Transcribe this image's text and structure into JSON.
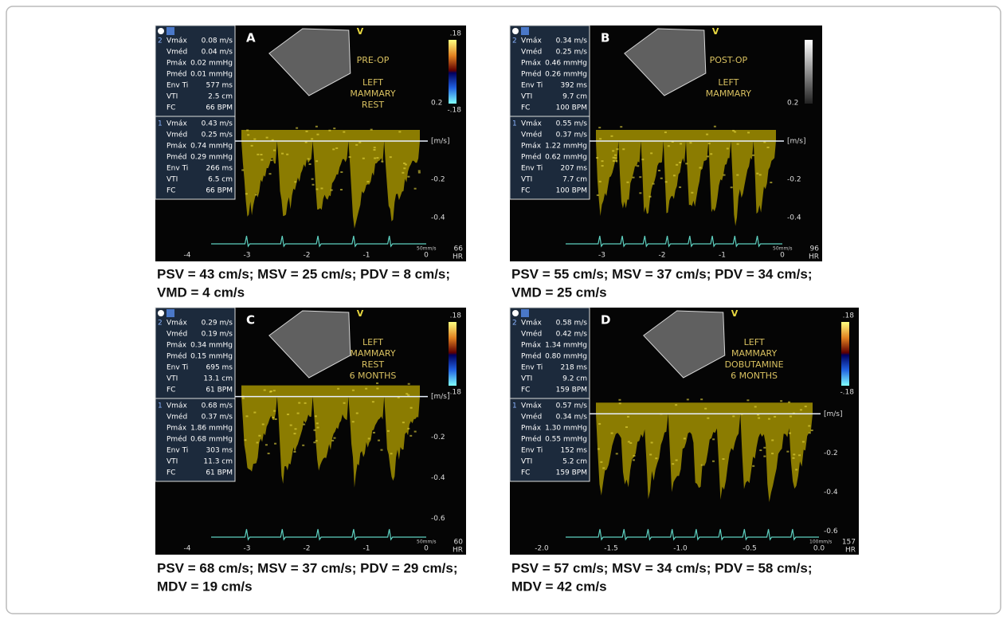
{
  "panels": [
    {
      "label": "A",
      "annotation": [
        "PRE-OP",
        "",
        "LEFT",
        "MAMMARY",
        "REST"
      ],
      "v": "V",
      "scale": [
        ".18",
        "-.18"
      ],
      "blocks": [
        {
          "index": "2",
          "rows": [
            [
              "Vmáx",
              "0.08 m/s"
            ],
            [
              "Vméd",
              "0.04 m/s"
            ],
            [
              "Pmáx",
              "0.02 mmHg"
            ],
            [
              "Pméd",
              "0.01 mmHg"
            ],
            [
              "Env Ti",
              "577 ms"
            ],
            [
              "VTI",
              "2.5 cm"
            ],
            [
              "FC",
              "66 BPM"
            ]
          ]
        },
        {
          "index": "1",
          "rows": [
            [
              "Vmáx",
              "0.43 m/s"
            ],
            [
              "Vméd",
              "0.25 m/s"
            ],
            [
              "Pmáx",
              "0.74 mmHg"
            ],
            [
              "Pméd",
              "0.29 mmHg"
            ],
            [
              "Env Ti",
              "266 ms"
            ],
            [
              "VTI",
              "6.5 cm"
            ],
            [
              "FC",
              "66 BPM"
            ]
          ]
        }
      ],
      "velocity_ticks": [
        "0.2",
        "[m/s]",
        "-0.2",
        "-0.4"
      ],
      "time_ticks": [
        "-4",
        "-3",
        "-2",
        "-1",
        "0"
      ],
      "sweep": "50mm/s",
      "hr": "66",
      "hr_unit": "HR",
      "caption": [
        "PSV = 43 cm/s; MSV = 25 cm/s; PDV = 8 cm/s;",
        "VMD = 4 cm/s"
      ]
    },
    {
      "label": "B",
      "annotation": [
        "POST-OP",
        "",
        "LEFT",
        "MAMMARY"
      ],
      "v": "V",
      "scale": [],
      "blocks": [
        {
          "index": "2",
          "rows": [
            [
              "Vmáx",
              "0.34 m/s"
            ],
            [
              "Vméd",
              "0.25 m/s"
            ],
            [
              "Pmáx",
              "0.46 mmHg"
            ],
            [
              "Pméd",
              "0.26 mmHg"
            ],
            [
              "Env Ti",
              "392 ms"
            ],
            [
              "VTI",
              "9.7 cm"
            ],
            [
              "FC",
              "100 BPM"
            ]
          ]
        },
        {
          "index": "1",
          "rows": [
            [
              "Vmáx",
              "0.55 m/s"
            ],
            [
              "Vméd",
              "0.37 m/s"
            ],
            [
              "Pmáx",
              "1.22 mmHg"
            ],
            [
              "Pméd",
              "0.62 mmHg"
            ],
            [
              "Env Ti",
              "207 ms"
            ],
            [
              "VTI",
              "7.7 cm"
            ],
            [
              "FC",
              "100 BPM"
            ]
          ]
        }
      ],
      "velocity_ticks": [
        "0.2",
        "[m/s]",
        "-0.2",
        "-0.4"
      ],
      "time_ticks": [
        "-3",
        "-2",
        "-1",
        "0"
      ],
      "sweep": "50mm/s",
      "hr": "96",
      "hr_unit": "HR",
      "caption": [
        "PSV = 55 cm/s; MSV = 37 cm/s; PDV = 34 cm/s;",
        "VMD = 25 cm/s"
      ]
    },
    {
      "label": "C",
      "annotation": [
        "LEFT",
        "MAMMARY",
        "REST",
        "6 MONTHS"
      ],
      "v": "V",
      "scale": [
        ".18",
        "-.18"
      ],
      "blocks": [
        {
          "index": "2",
          "rows": [
            [
              "Vmáx",
              "0.29 m/s"
            ],
            [
              "Vméd",
              "0.19 m/s"
            ],
            [
              "Pmáx",
              "0.34 mmHg"
            ],
            [
              "Pméd",
              "0.15 mmHg"
            ],
            [
              "Env Ti",
              "695 ms"
            ],
            [
              "VTI",
              "13.1 cm"
            ],
            [
              "FC",
              "61 BPM"
            ]
          ]
        },
        {
          "index": "1",
          "rows": [
            [
              "Vmáx",
              "0.68 m/s"
            ],
            [
              "Vméd",
              "0.37 m/s"
            ],
            [
              "Pmáx",
              "1.86 mmHg"
            ],
            [
              "Pméd",
              "0.68 mmHg"
            ],
            [
              "Env Ti",
              "303 ms"
            ],
            [
              "VTI",
              "11.3 cm"
            ],
            [
              "FC",
              "61 BPM"
            ]
          ]
        }
      ],
      "velocity_ticks": [
        "[m/s]",
        "-0.2",
        "-0.4",
        "-0.6"
      ],
      "time_ticks": [
        "-4",
        "-3",
        "-2",
        "-1",
        "0"
      ],
      "sweep": "50mm/s",
      "hr": "60",
      "hr_unit": "HR",
      "caption": [
        "PSV = 68 cm/s; MSV = 37 cm/s; PDV = 29 cm/s;",
        "MDV = 19 cm/s"
      ]
    },
    {
      "label": "D",
      "annotation": [
        "LEFT",
        "MAMMARY",
        "DOBUTAMINE",
        "6 MONTHS"
      ],
      "v": "V",
      "scale": [
        ".18",
        "-.18"
      ],
      "blocks": [
        {
          "index": "2",
          "rows": [
            [
              "Vmáx",
              "0.58 m/s"
            ],
            [
              "Vméd",
              "0.42 m/s"
            ],
            [
              "Pmáx",
              "1.34 mmHg"
            ],
            [
              "Pméd",
              "0.80 mmHg"
            ],
            [
              "Env Ti",
              "218 ms"
            ],
            [
              "VTI",
              "9.2 cm"
            ],
            [
              "FC",
              "159 BPM"
            ]
          ]
        },
        {
          "index": "1",
          "rows": [
            [
              "Vmáx",
              "0.57 m/s"
            ],
            [
              "Vméd",
              "0.34 m/s"
            ],
            [
              "Pmáx",
              "1.30 mmHg"
            ],
            [
              "Pméd",
              "0.55 mmHg"
            ],
            [
              "Env Ti",
              "152 ms"
            ],
            [
              "VTI",
              "5.2 cm"
            ],
            [
              "FC",
              "159 BPM"
            ]
          ]
        }
      ],
      "velocity_ticks": [
        "[m/s]",
        "-0.2",
        "-0.4",
        "-0.6"
      ],
      "time_ticks": [
        "-2.0",
        "-1.5",
        "-1.0",
        "-0.5",
        "0.0"
      ],
      "sweep": "100mm/s",
      "hr": "157",
      "hr_unit": "HR",
      "caption": [
        "PSV = 57 cm/s; MSV = 34 cm/s; PDV = 58 cm/s;",
        "MDV = 42 cm/s"
      ]
    }
  ]
}
